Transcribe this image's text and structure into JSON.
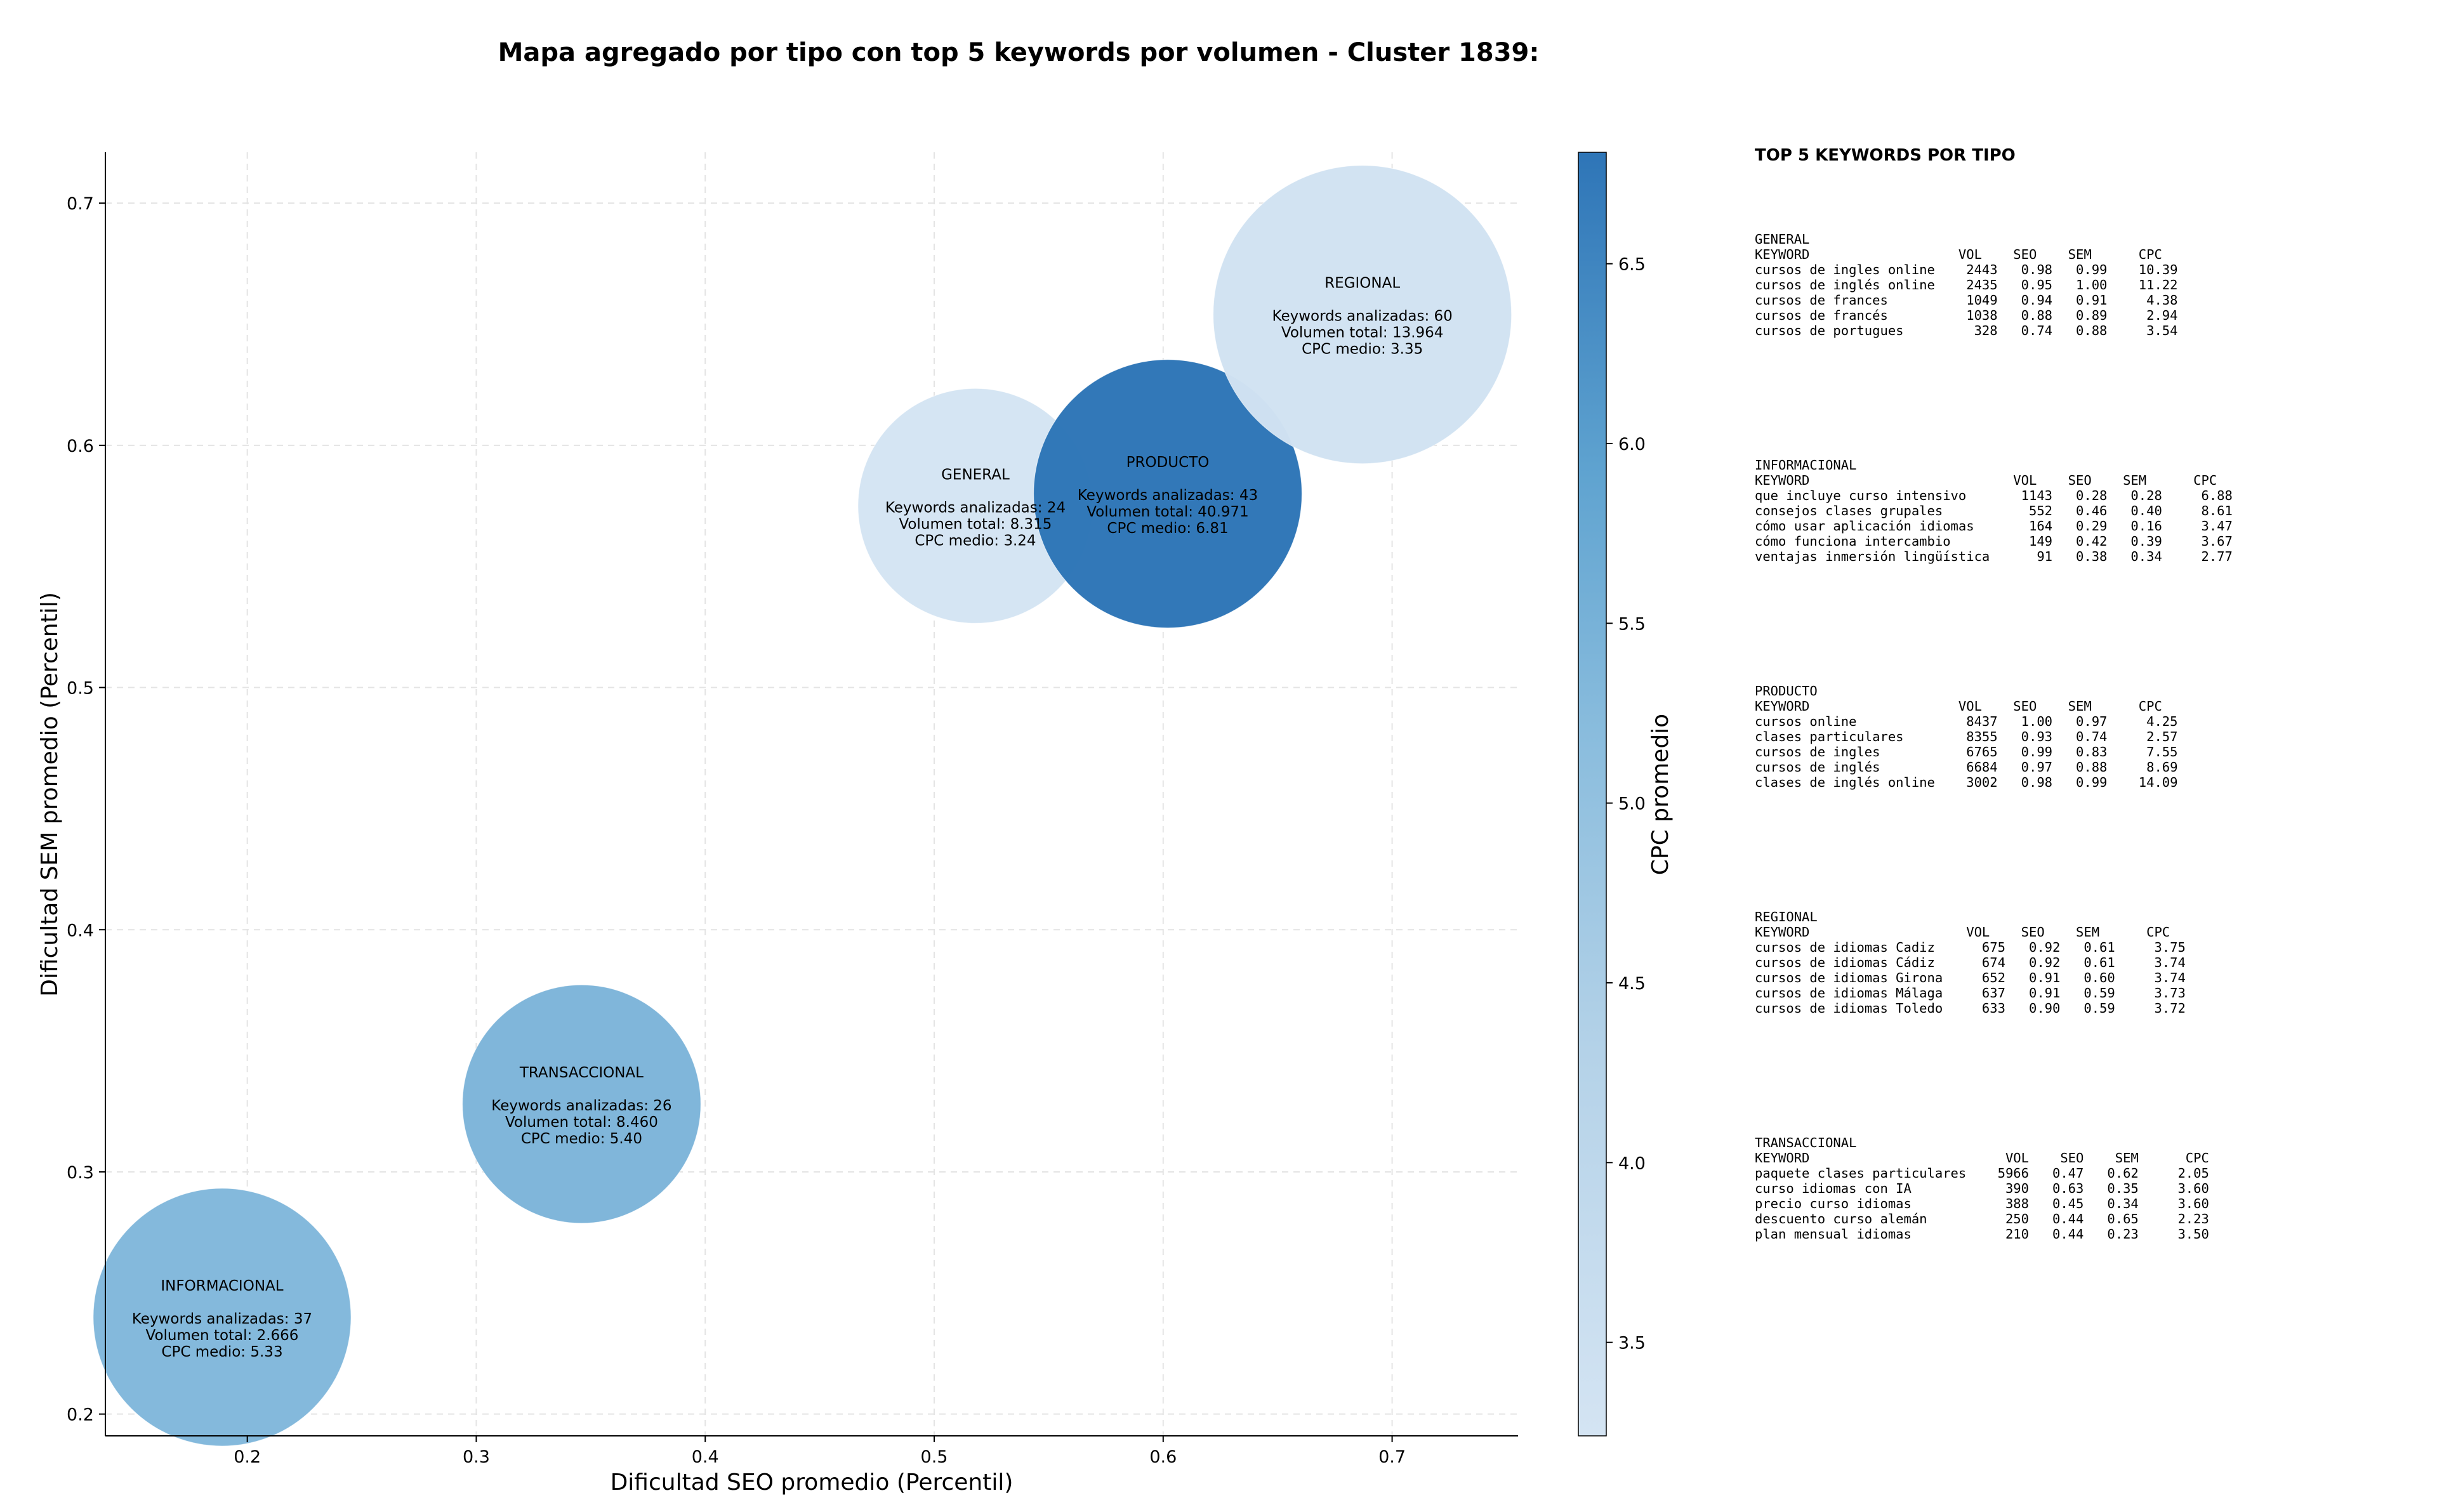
{
  "chart_data": {
    "type": "scatter",
    "title": "Mapa agregado por tipo con top 5 keywords por volumen - Cluster 1839:",
    "xlabel": "Dificultad SEO promedio (Percentil)",
    "ylabel": "Dificultad SEM promedio (Percentil)",
    "xlim": [
      0.138,
      0.755
    ],
    "ylim": [
      0.191,
      0.721
    ],
    "x_ticks": [
      "0.2",
      "0.3",
      "0.4",
      "0.5",
      "0.6",
      "0.7"
    ],
    "y_ticks": [
      "0.2",
      "0.3",
      "0.4",
      "0.5",
      "0.6",
      "0.7"
    ],
    "grid": true,
    "size_encoding": "keywords_analizadas",
    "color_encoding": "cpc_medio",
    "colorbar": {
      "label": "CPC promedio",
      "range": [
        3.24,
        6.81
      ],
      "ticks": [
        "3.5",
        "4.0",
        "4.5",
        "5.0",
        "5.5",
        "6.0",
        "6.5"
      ]
    },
    "points": [
      {
        "tipo": "GENERAL",
        "x": 0.518,
        "y": 0.575,
        "keywords": 24,
        "volumen": "8.315",
        "cpc": 3.24,
        "line1": "Keywords analizadas: 24",
        "line2": "Volumen total: 8.315",
        "line3": "CPC medio: 3.24"
      },
      {
        "tipo": "PRODUCTO",
        "x": 0.602,
        "y": 0.58,
        "keywords": 43,
        "volumen": "40.971",
        "cpc": 6.81,
        "line1": "Keywords analizadas: 43",
        "line2": "Volumen total: 40.971",
        "line3": "CPC medio: 6.81"
      },
      {
        "tipo": "REGIONAL",
        "x": 0.687,
        "y": 0.654,
        "keywords": 60,
        "volumen": "13.964",
        "cpc": 3.35,
        "line1": "Keywords analizadas: 60",
        "line2": "Volumen total: 13.964",
        "line3": "CPC medio: 3.35"
      },
      {
        "tipo": "TRANSACCIONAL",
        "x": 0.346,
        "y": 0.328,
        "keywords": 26,
        "volumen": "8.460",
        "cpc": 5.4,
        "line1": "Keywords analizadas: 26",
        "line2": "Volumen total: 8.460",
        "line3": "CPC medio: 5.40"
      },
      {
        "tipo": "INFORMACIONAL",
        "x": 0.189,
        "y": 0.24,
        "keywords": 37,
        "volumen": "2.666",
        "cpc": 5.33,
        "line1": "Keywords analizadas: 37",
        "line2": "Volumen total: 2.666",
        "line3": "CPC medio: 5.33"
      }
    ]
  },
  "tables": {
    "title": "TOP 5 KEYWORDS POR TIPO",
    "groups": [
      {
        "name": "GENERAL",
        "header": "KEYWORD                   VOL    SEO    SEM      CPC",
        "rows": [
          "cursos de ingles online    2443   0.98   0.99    10.39",
          "cursos de inglés online    2435   0.95   1.00    11.22",
          "cursos de frances          1049   0.94   0.91     4.38",
          "cursos de francés          1038   0.88   0.89     2.94",
          "cursos de portugues         328   0.74   0.88     3.54"
        ]
      },
      {
        "name": "INFORMACIONAL",
        "header": "KEYWORD                          VOL    SEO    SEM      CPC",
        "rows": [
          "que incluye curso intensivo       1143   0.28   0.28     6.88",
          "consejos clases grupales           552   0.46   0.40     8.61",
          "cómo usar aplicación idiomas       164   0.29   0.16     3.47",
          "cómo funciona intercambio          149   0.42   0.39     3.67",
          "ventajas inmersión lingüística      91   0.38   0.34     2.77"
        ]
      },
      {
        "name": "PRODUCTO",
        "header": "KEYWORD                   VOL    SEO    SEM      CPC",
        "rows": [
          "cursos online              8437   1.00   0.97     4.25",
          "clases particulares        8355   0.93   0.74     2.57",
          "cursos de ingles           6765   0.99   0.83     7.55",
          "cursos de inglés           6684   0.97   0.88     8.69",
          "clases de inglés online    3002   0.98   0.99    14.09"
        ]
      },
      {
        "name": "REGIONAL",
        "header": "KEYWORD                    VOL    SEO    SEM      CPC",
        "rows": [
          "cursos de idiomas Cadiz      675   0.92   0.61     3.75",
          "cursos de idiomas Cádiz      674   0.92   0.61     3.74",
          "cursos de idiomas Girona     652   0.91   0.60     3.74",
          "cursos de idiomas Málaga     637   0.91   0.59     3.73",
          "cursos de idiomas Toledo     633   0.90   0.59     3.72"
        ]
      },
      {
        "name": "TRANSACCIONAL",
        "header": "KEYWORD                         VOL    SEO    SEM      CPC",
        "rows": [
          "paquete clases particulares    5966   0.47   0.62     2.05",
          "curso idiomas con IA            390   0.63   0.35     3.60",
          "precio curso idiomas            388   0.45   0.34     3.60",
          "descuento curso alemán          250   0.44   0.65     2.23",
          "plan mensual idiomas            210   0.44   0.23     3.50"
        ]
      }
    ]
  }
}
